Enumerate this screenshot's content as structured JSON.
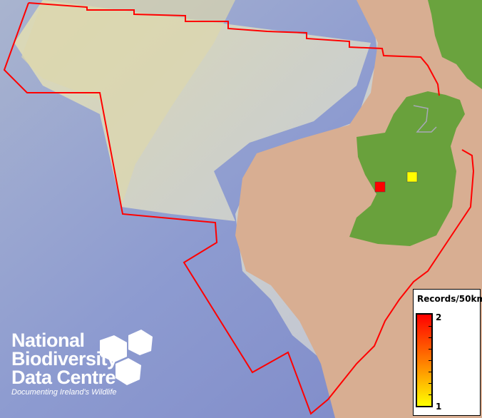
{
  "map": {
    "boundary_color": "#ff0000",
    "records": [
      {
        "value": 2,
        "color": "#ff0000"
      },
      {
        "value": 1,
        "color": "#ffff00"
      }
    ]
  },
  "legend": {
    "title": "Records/50km",
    "max_label": "2",
    "min_label": "1",
    "color_max": "#ff0000",
    "color_min": "#ffff00"
  },
  "logo": {
    "line1": "National",
    "line2": "Biodiversity",
    "line3": "Data Centre",
    "tagline": "Documenting Ireland's Wildlife"
  }
}
